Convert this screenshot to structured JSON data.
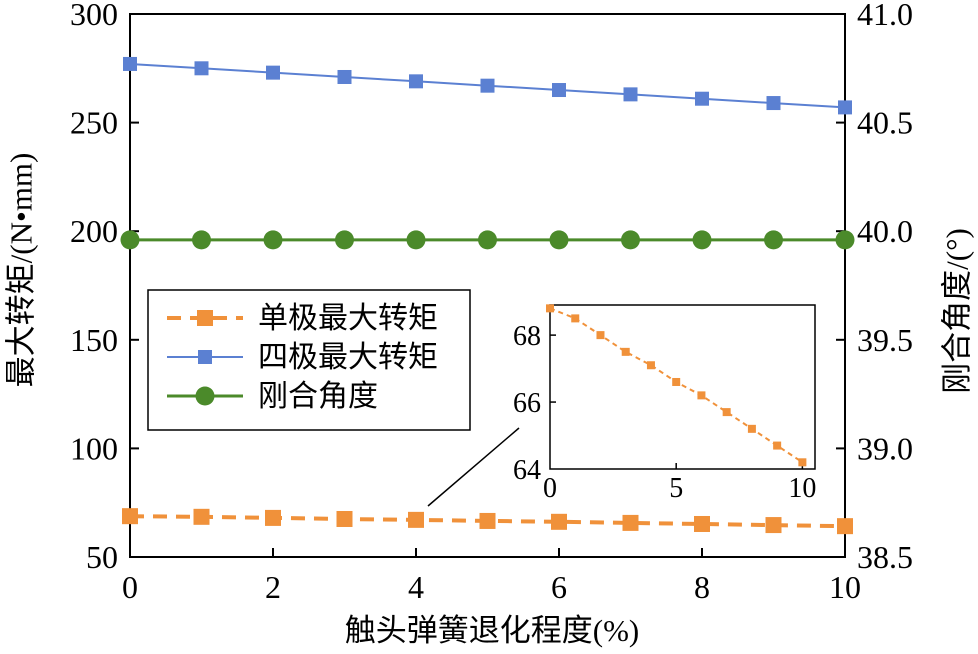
{
  "chart_data": {
    "type": "line",
    "x": [
      0,
      1,
      2,
      3,
      4,
      5,
      6,
      7,
      8,
      9,
      10
    ],
    "xlabel": "触头弹簧退化程度(%)",
    "ylabel": "最大转矩/(N•mm)",
    "y2label": "刚合角度/(°)",
    "xlim": [
      0,
      10
    ],
    "ylim": [
      50,
      300
    ],
    "y2lim": [
      38.5,
      41.0
    ],
    "xticks": [
      "0",
      "2",
      "4",
      "6",
      "8",
      "10"
    ],
    "yticks": [
      "50",
      "100",
      "150",
      "200",
      "250",
      "300"
    ],
    "y2ticks": [
      "38.5",
      "39.0",
      "39.5",
      "40.0",
      "40.5",
      "41.0"
    ],
    "grid": false,
    "series": [
      {
        "name": "单极最大转矩",
        "axis": "left",
        "color": "#F0913A",
        "line": "dashed",
        "marker": "square",
        "values": [
          68.8,
          68.5,
          68.0,
          67.5,
          67.1,
          66.6,
          66.2,
          65.7,
          65.2,
          64.7,
          64.2
        ]
      },
      {
        "name": "四极最大转矩",
        "axis": "left",
        "color": "#5B80D2",
        "line": "solid",
        "marker": "square",
        "values": [
          277,
          275,
          273,
          271,
          269,
          267,
          265,
          263,
          261,
          259,
          257
        ]
      },
      {
        "name": "刚合角度",
        "axis": "right",
        "color": "#4B8A2A",
        "line": "solid",
        "marker": "circle",
        "values": [
          39.96,
          39.96,
          39.96,
          39.96,
          39.96,
          39.96,
          39.96,
          39.96,
          39.96,
          39.96,
          39.96
        ]
      }
    ],
    "legend": {
      "placement": "center-left"
    },
    "inset": {
      "series_index": 0,
      "xlim": [
        0,
        10.5
      ],
      "ylim": [
        64,
        68.9
      ],
      "xticks": [
        "0",
        "5",
        "10"
      ],
      "yticks": [
        "64",
        "66",
        "68"
      ]
    }
  }
}
